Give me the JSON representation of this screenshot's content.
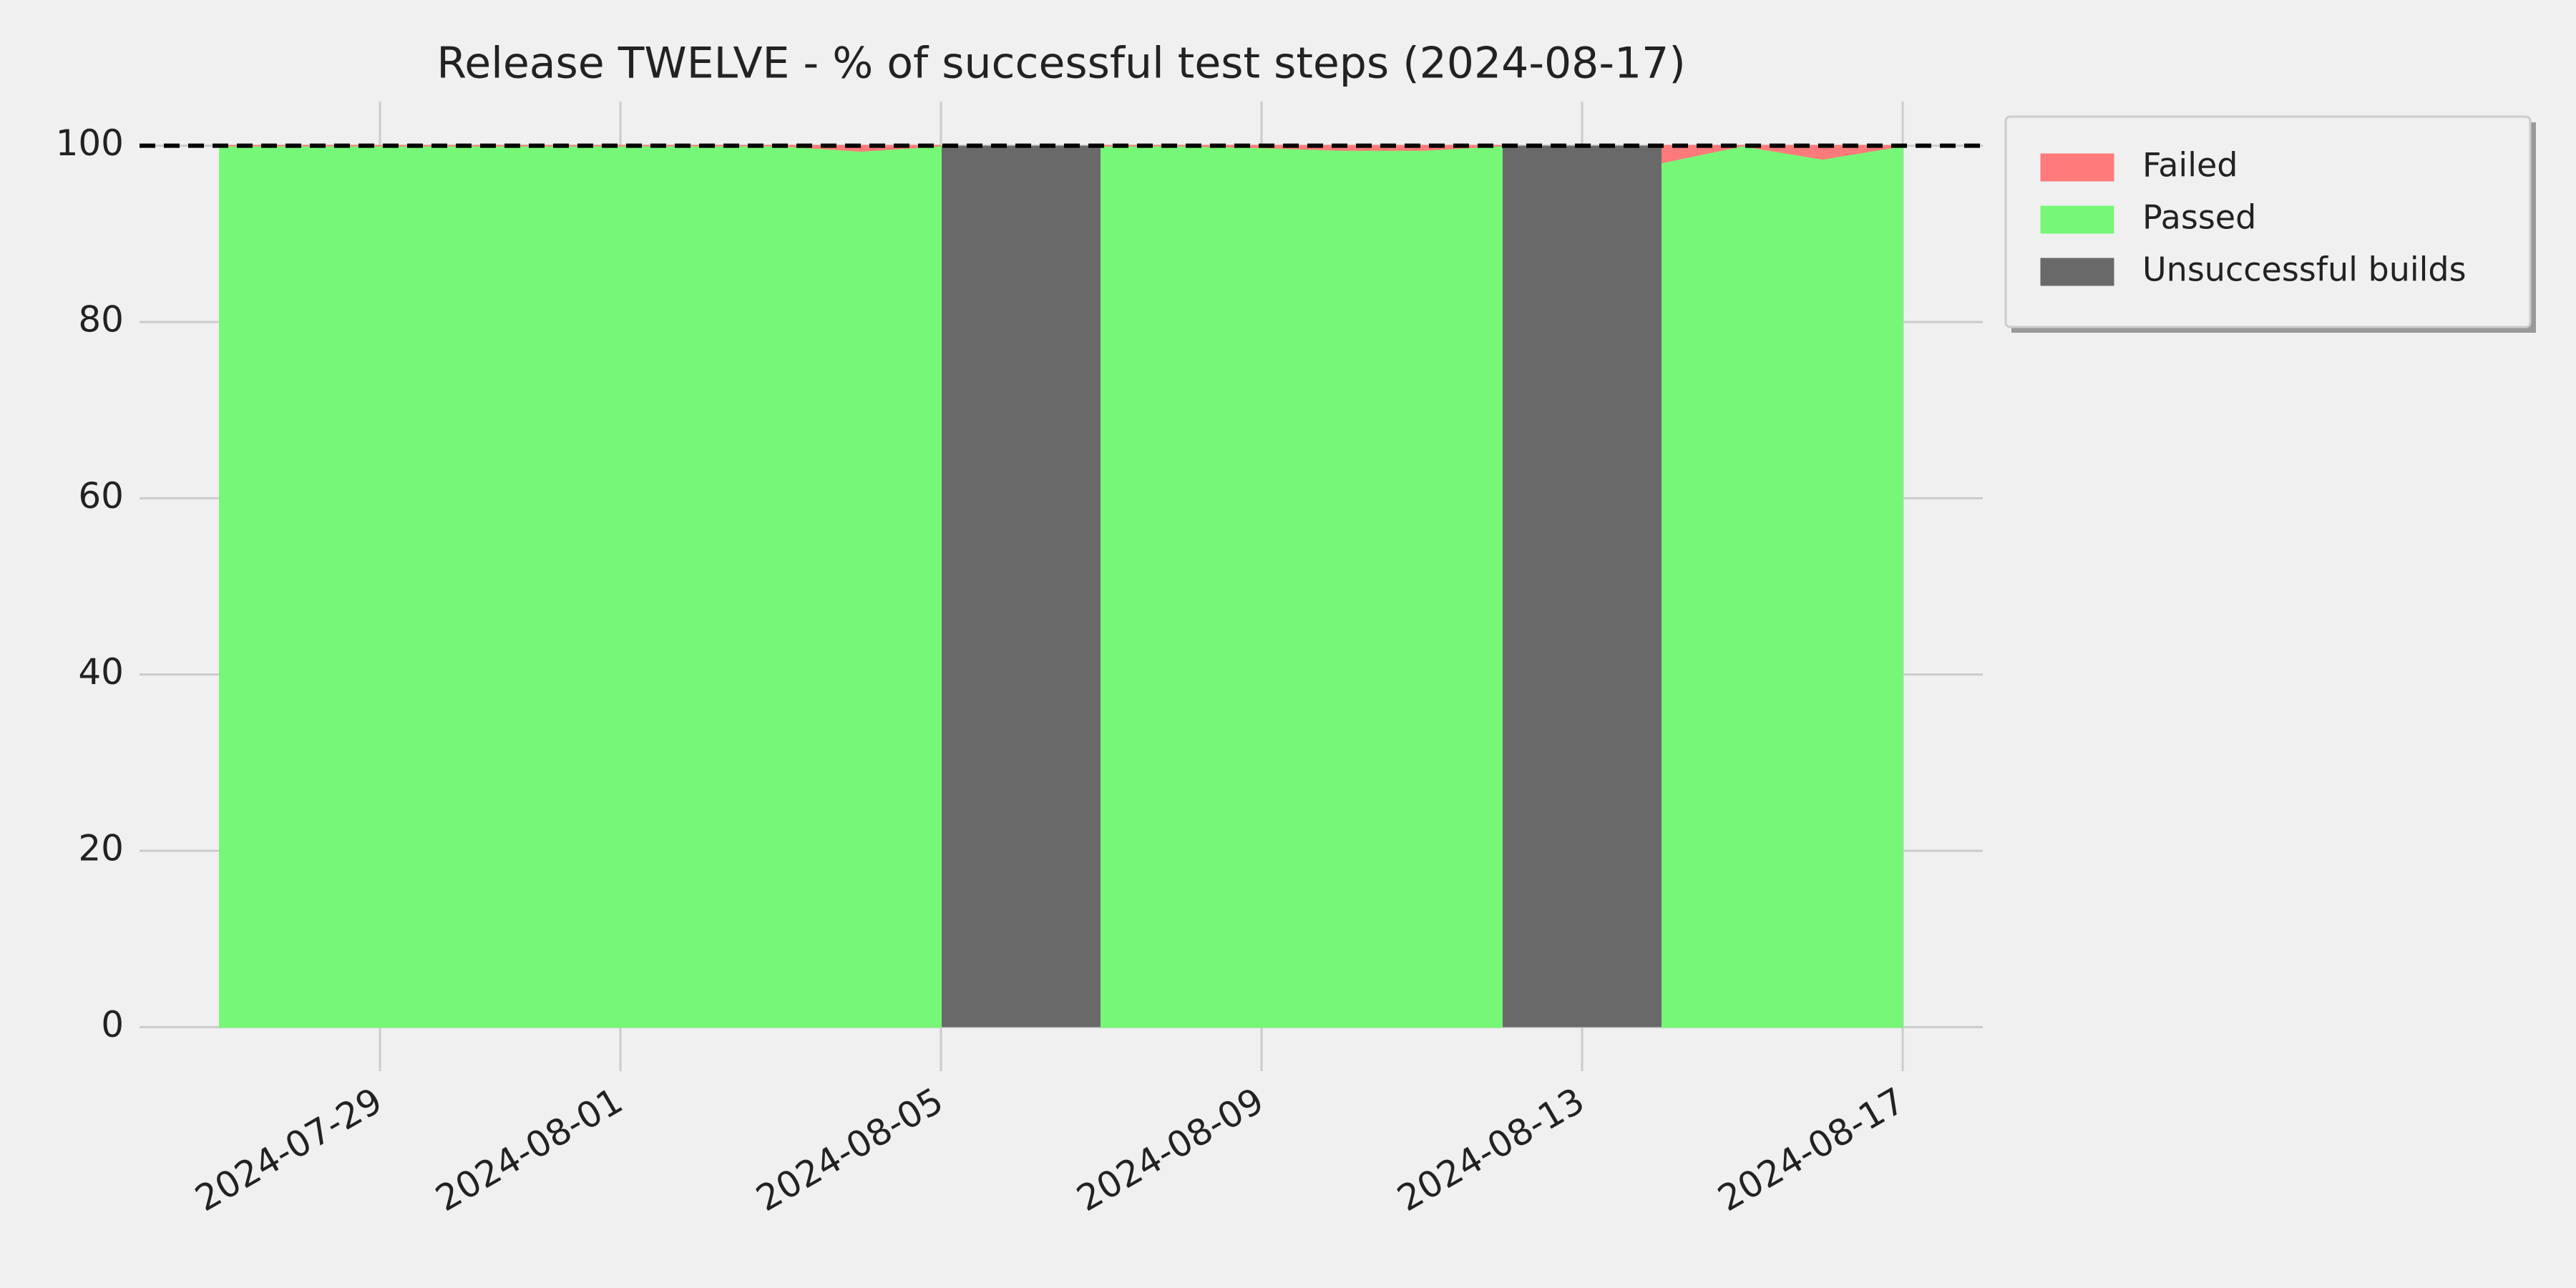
{
  "chart_data": {
    "type": "stacked_area",
    "title": "Release TWELVE - % of successful test steps (2024-08-17)",
    "x": [
      "2024-07-27",
      "2024-07-28",
      "2024-07-29",
      "2024-07-30",
      "2024-07-31",
      "2024-08-01",
      "2024-08-02",
      "2024-08-03",
      "2024-08-04",
      "2024-08-05",
      "2024-08-06",
      "2024-08-07",
      "2024-08-08",
      "2024-08-09",
      "2024-08-10",
      "2024-08-11",
      "2024-08-12",
      "2024-08-13",
      "2024-08-14",
      "2024-08-15",
      "2024-08-16",
      "2024-08-17"
    ],
    "series": [
      {
        "name": "Failed",
        "color": "#ff7b7b",
        "values": [
          0,
          0,
          0,
          0,
          0,
          0,
          0,
          0,
          0.6,
          0,
          null,
          0,
          0,
          0.2,
          0.5,
          0.5,
          0,
          null,
          1.9,
          0,
          1.5,
          0
        ]
      },
      {
        "name": "Passed",
        "color": "#77f777",
        "values": [
          100,
          100,
          100,
          100,
          100,
          100,
          100,
          100,
          99.4,
          100,
          null,
          100,
          100,
          99.8,
          99.5,
          99.5,
          100,
          null,
          98.1,
          100,
          98.5,
          100
        ]
      }
    ],
    "spans": {
      "name": "Unsuccessful builds",
      "color": "#696969",
      "ranges": [
        [
          "2024-08-05",
          "2024-08-07"
        ],
        [
          "2024-08-12",
          "2024-08-14"
        ]
      ]
    },
    "hlines": [
      100
    ],
    "xlim": [
      "2024-07-26",
      "2024-08-18"
    ],
    "xticks": [
      "2024-07-29",
      "2024-08-01",
      "2024-08-05",
      "2024-08-09",
      "2024-08-13",
      "2024-08-17"
    ],
    "ylim": [
      -5,
      105
    ],
    "yticks": [
      0,
      20,
      40,
      60,
      80,
      100
    ],
    "grid": true,
    "legend": "outside upper right"
  }
}
